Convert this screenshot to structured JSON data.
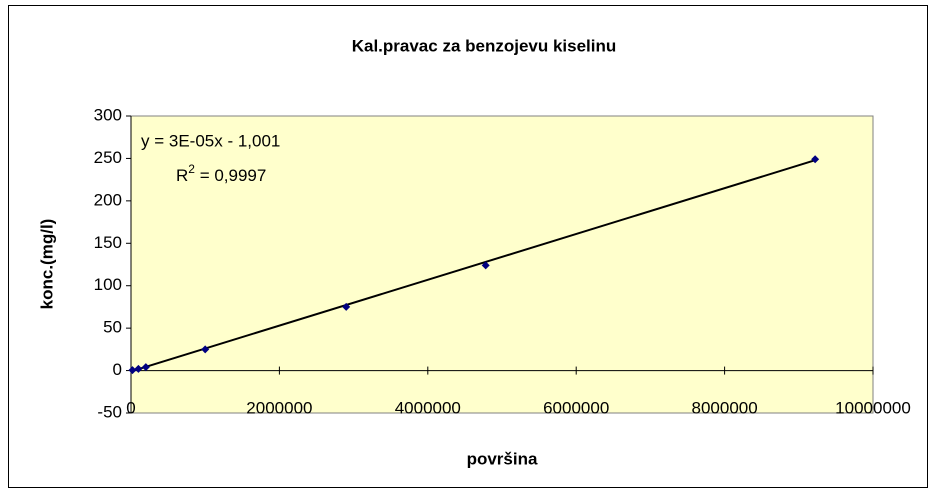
{
  "chart_data": {
    "type": "scatter",
    "title": "Kal.pravac za benzojevu kiselinu",
    "xlabel": "površina",
    "ylabel": "konc.(mg/l)",
    "series": [
      {
        "name": "konc.(mg/l)",
        "color": "#000080",
        "x": [
          20000,
          100000,
          200000,
          1000000,
          2900000,
          4780000,
          9220000
        ],
        "values": [
          0.5,
          2,
          4,
          25,
          75,
          124,
          249
        ]
      }
    ],
    "trendline": {
      "color": "#000000",
      "x": [
        0,
        9220000
      ],
      "values": [
        -1,
        247.9
      ]
    },
    "annotations": {
      "equation": "y = 3E-05x - 1,001",
      "r2": {
        "text": "R",
        "sup": "2",
        "rest": " = 0,9997"
      }
    },
    "xlim": [
      0,
      10000000
    ],
    "xticks": [
      0,
      2000000,
      4000000,
      6000000,
      8000000,
      10000000
    ],
    "ylim": [
      -50,
      300
    ],
    "yticks": [
      -50,
      0,
      50,
      100,
      150,
      200,
      250,
      300
    ],
    "plot_background": "#ffffcc",
    "grid": false
  }
}
